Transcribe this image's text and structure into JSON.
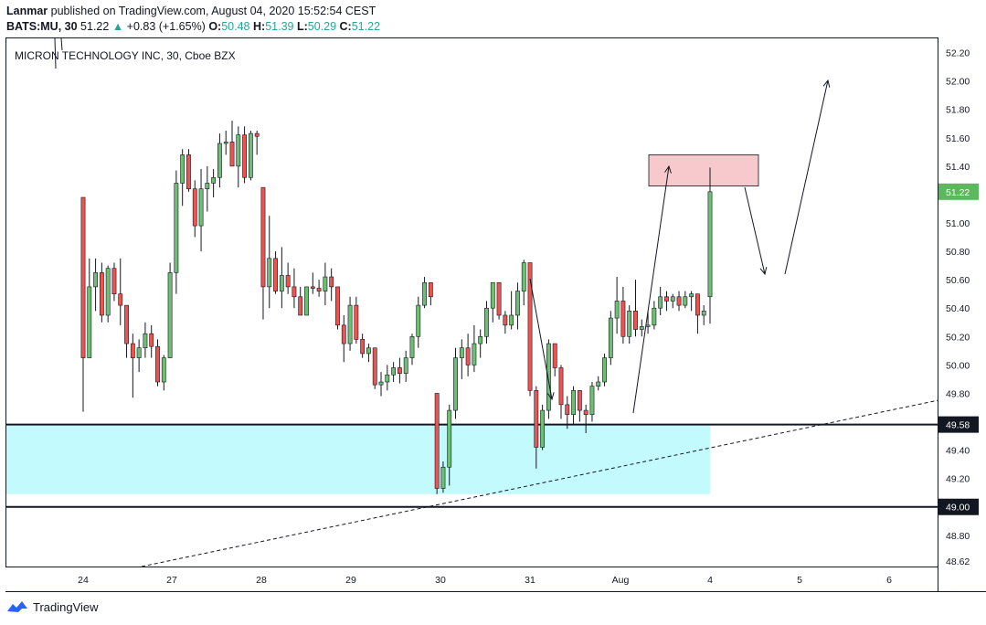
{
  "header": {
    "author": "Lanmar",
    "published_text": "published on TradingView.com, August 04, 2020 15:52:54 CEST",
    "symbol": "BATS:MU, 30",
    "last": "51.22",
    "change": "+0.83 (+1.65%)",
    "o_label": "O:",
    "o_value": "50.48",
    "h_label": "H:",
    "h_value": "51.39",
    "l_label": "L:",
    "l_value": "50.29",
    "c_label": "C:",
    "c_value": "51.22"
  },
  "chart_title": "MICRON TECHNOLOGY INC, 30, Cboe BZX",
  "footer": {
    "brand": "TradingView",
    "logo_icon": "tradingview-logo-icon"
  },
  "colors": {
    "up": "#26a69a",
    "up_body": "#6fbf73",
    "down": "#ef5350",
    "wick": "#131722",
    "zone": "#c3fafe",
    "supply": "#f7c9cd",
    "price_tag": "#5cb85c"
  },
  "chart_data": {
    "type": "candlestick",
    "title": "MICRON TECHNOLOGY INC, 30, Cboe BZX",
    "ylim": [
      48.58,
      52.3
    ],
    "yticks": [
      52.2,
      52.0,
      51.8,
      51.6,
      51.4,
      51.2,
      51.0,
      50.8,
      50.6,
      50.4,
      50.2,
      50.0,
      49.8,
      49.4,
      49.2,
      48.8,
      48.62
    ],
    "ytick_labels": [
      "52.20",
      "52.00",
      "51.80",
      "51.60",
      "51.40",
      "51.20",
      "51.00",
      "50.80",
      "50.60",
      "50.40",
      "50.20",
      "50.00",
      "49.80",
      "49.40",
      "49.20",
      "48.80",
      "48.62"
    ],
    "xticks": [
      "24",
      "27",
      "28",
      "29",
      "30",
      "31",
      "Aug",
      "4",
      "5",
      "6"
    ],
    "price_labels": [
      {
        "value": 51.22,
        "text": "51.22",
        "style": "green"
      },
      {
        "value": 49.58,
        "text": "49.58",
        "style": "dark"
      },
      {
        "value": 49.0,
        "text": "49.00",
        "style": "dark"
      }
    ],
    "horizontal_lines": [
      49.58,
      49.0
    ],
    "candles": [
      [
        51.18,
        51.18,
        49.67,
        50.05
      ],
      [
        50.05,
        50.75,
        50.05,
        50.55
      ],
      [
        50.55,
        50.75,
        50.38,
        50.65
      ],
      [
        50.65,
        50.72,
        50.3,
        50.35
      ],
      [
        50.35,
        50.7,
        50.3,
        50.68
      ],
      [
        50.68,
        50.72,
        50.45,
        50.5
      ],
      [
        50.5,
        50.75,
        50.28,
        50.42
      ],
      [
        50.42,
        50.42,
        50.05,
        50.15
      ],
      [
        50.15,
        50.22,
        49.77,
        50.05
      ],
      [
        50.05,
        50.18,
        49.95,
        50.12
      ],
      [
        50.12,
        50.3,
        50.05,
        50.22
      ],
      [
        50.22,
        50.28,
        50.05,
        50.13
      ],
      [
        50.13,
        50.18,
        49.85,
        49.88
      ],
      [
        49.88,
        50.07,
        49.82,
        50.05
      ],
      [
        50.05,
        50.72,
        50.05,
        50.65
      ],
      [
        50.65,
        51.37,
        50.5,
        51.28
      ],
      [
        51.28,
        51.52,
        51.12,
        51.48
      ],
      [
        51.48,
        51.52,
        51.22,
        51.24
      ],
      [
        51.24,
        51.3,
        50.9,
        50.98
      ],
      [
        50.98,
        51.38,
        50.8,
        51.24
      ],
      [
        51.24,
        51.4,
        51.08,
        51.28
      ],
      [
        51.28,
        51.38,
        51.18,
        51.32
      ],
      [
        51.32,
        51.63,
        51.25,
        51.56
      ],
      [
        51.56,
        51.65,
        51.48,
        51.57
      ],
      [
        51.57,
        51.72,
        51.4,
        51.4
      ],
      [
        51.4,
        51.68,
        51.25,
        51.62
      ],
      [
        51.62,
        51.68,
        51.28,
        51.32
      ],
      [
        51.32,
        51.65,
        51.3,
        51.63
      ],
      [
        51.63,
        51.65,
        51.48,
        51.61
      ],
      [
        51.25,
        51.25,
        50.32,
        50.55
      ],
      [
        50.55,
        51.05,
        50.4,
        50.75
      ],
      [
        50.75,
        50.8,
        50.5,
        50.52
      ],
      [
        50.52,
        50.83,
        50.4,
        50.63
      ],
      [
        50.63,
        50.72,
        50.5,
        50.55
      ],
      [
        50.55,
        50.68,
        50.4,
        50.48
      ],
      [
        50.48,
        50.55,
        50.35,
        50.35
      ],
      [
        50.35,
        50.55,
        50.35,
        50.55
      ],
      [
        50.55,
        50.65,
        50.5,
        50.54
      ],
      [
        50.54,
        50.6,
        50.48,
        50.52
      ],
      [
        50.52,
        50.72,
        50.42,
        50.62
      ],
      [
        50.62,
        50.68,
        50.45,
        50.55
      ],
      [
        50.55,
        50.55,
        50.25,
        50.28
      ],
      [
        50.28,
        50.35,
        50.02,
        50.15
      ],
      [
        50.15,
        50.48,
        50.1,
        50.42
      ],
      [
        50.42,
        50.48,
        50.15,
        50.18
      ],
      [
        50.18,
        50.22,
        50.05,
        50.08
      ],
      [
        50.08,
        50.15,
        50.02,
        50.12
      ],
      [
        50.12,
        50.12,
        49.83,
        49.86
      ],
      [
        49.86,
        49.95,
        49.78,
        49.88
      ],
      [
        49.88,
        50.0,
        49.82,
        49.93
      ],
      [
        49.93,
        50.02,
        49.88,
        49.98
      ],
      [
        49.98,
        50.05,
        49.87,
        49.94
      ],
      [
        49.94,
        50.1,
        49.88,
        50.05
      ],
      [
        50.05,
        50.22,
        50.0,
        50.2
      ],
      [
        50.2,
        50.48,
        50.12,
        50.42
      ],
      [
        50.42,
        50.62,
        50.4,
        50.58
      ],
      [
        50.58,
        50.58,
        50.42,
        50.48
      ],
      [
        49.8,
        49.8,
        49.09,
        49.13
      ],
      [
        49.13,
        49.32,
        49.1,
        49.28
      ],
      [
        49.28,
        49.72,
        49.15,
        49.68
      ],
      [
        49.68,
        50.12,
        49.62,
        50.05
      ],
      [
        50.05,
        50.18,
        49.9,
        50.12
      ],
      [
        50.12,
        50.22,
        49.92,
        50.0
      ],
      [
        50.0,
        50.28,
        49.95,
        50.15
      ],
      [
        50.15,
        50.25,
        50.05,
        50.2
      ],
      [
        50.2,
        50.45,
        50.15,
        50.4
      ],
      [
        50.4,
        50.58,
        50.3,
        50.58
      ],
      [
        50.58,
        50.58,
        50.32,
        50.35
      ],
      [
        50.35,
        50.38,
        50.22,
        50.28
      ],
      [
        50.28,
        50.52,
        50.25,
        50.35
      ],
      [
        50.35,
        50.58,
        50.25,
        50.52
      ],
      [
        50.52,
        50.74,
        50.42,
        50.72
      ],
      [
        50.72,
        50.72,
        49.78,
        49.82
      ],
      [
        49.82,
        49.85,
        49.27,
        49.42
      ],
      [
        49.42,
        49.72,
        49.4,
        49.68
      ],
      [
        49.68,
        50.18,
        49.62,
        50.15
      ],
      [
        50.15,
        50.15,
        49.92,
        49.98
      ],
      [
        49.98,
        50.0,
        49.62,
        49.72
      ],
      [
        49.72,
        49.78,
        49.55,
        49.65
      ],
      [
        49.65,
        49.85,
        49.58,
        49.82
      ],
      [
        49.82,
        49.82,
        49.6,
        49.68
      ],
      [
        49.68,
        49.72,
        49.52,
        49.65
      ],
      [
        49.65,
        49.88,
        49.6,
        49.85
      ],
      [
        49.85,
        49.92,
        49.82,
        49.88
      ],
      [
        49.88,
        50.08,
        49.85,
        50.05
      ],
      [
        50.05,
        50.38,
        50.0,
        50.33
      ],
      [
        50.33,
        50.62,
        50.22,
        50.45
      ],
      [
        50.45,
        50.55,
        50.15,
        50.2
      ],
      [
        50.2,
        50.42,
        50.15,
        50.38
      ],
      [
        50.38,
        50.6,
        50.2,
        50.25
      ],
      [
        50.25,
        50.32,
        50.2,
        50.27
      ],
      [
        50.27,
        50.38,
        50.22,
        50.28
      ],
      [
        50.28,
        50.45,
        50.25,
        50.4
      ],
      [
        50.4,
        50.55,
        50.35,
        50.48
      ],
      [
        50.48,
        50.52,
        50.38,
        50.45
      ],
      [
        50.45,
        50.5,
        50.4,
        50.48
      ],
      [
        50.48,
        50.52,
        50.38,
        50.42
      ],
      [
        50.42,
        50.52,
        50.4,
        50.48
      ],
      [
        50.48,
        50.52,
        50.38,
        50.5
      ],
      [
        50.5,
        50.5,
        50.22,
        50.35
      ],
      [
        50.35,
        50.42,
        50.28,
        50.38
      ],
      [
        50.48,
        51.39,
        50.29,
        51.22
      ]
    ],
    "drawings": {
      "demand_zone": {
        "y_top": 49.58,
        "y_bottom": 49.09
      },
      "supply_zone": {
        "y_top": 51.48,
        "y_bottom": 51.26
      },
      "trendline": {
        "from": [
          0,
          48.58
        ],
        "to": [
          1,
          49.75
        ],
        "style": "dashed"
      }
    }
  }
}
